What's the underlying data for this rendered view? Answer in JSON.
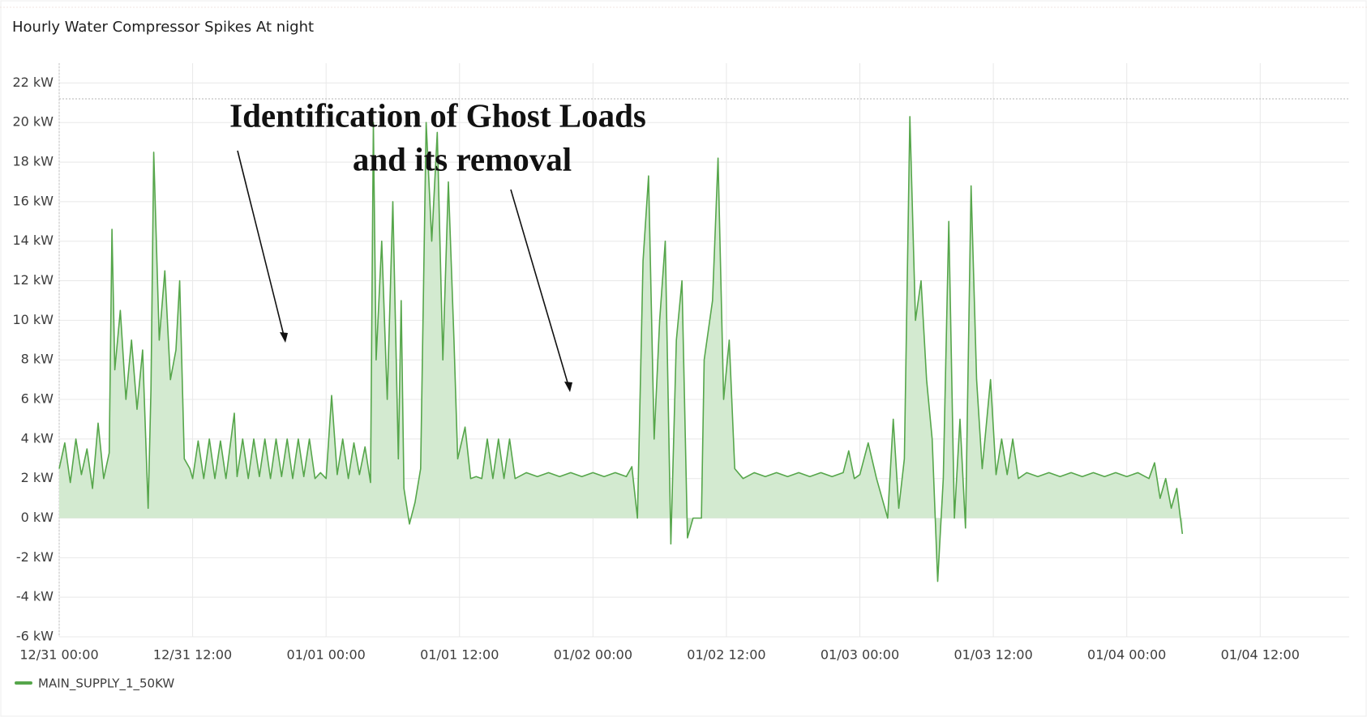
{
  "chart_data": {
    "type": "area-line",
    "title": "Hourly Water Compressor Spikes At night",
    "annotation": [
      "Identification of Ghost Loads",
      "and its removal"
    ],
    "xlim": [
      "12/31 00:00",
      "01/04 20:00"
    ],
    "xticks": [
      "12/31 00:00",
      "12/31 12:00",
      "01/01 00:00",
      "01/01 12:00",
      "01/02 00:00",
      "01/02 12:00",
      "01/03 00:00",
      "01/03 12:00",
      "01/04 00:00",
      "01/04 12:00"
    ],
    "ylim": [
      -6,
      23
    ],
    "yticks": [
      {
        "value": -6,
        "label": "-6 kW"
      },
      {
        "value": -4,
        "label": "-4 kW"
      },
      {
        "value": -2,
        "label": "-2 kW"
      },
      {
        "value": 0,
        "label": "0 kW"
      },
      {
        "value": 2,
        "label": "2 kW"
      },
      {
        "value": 4,
        "label": "4 kW"
      },
      {
        "value": 6,
        "label": "6 kW"
      },
      {
        "value": 8,
        "label": "8 kW"
      },
      {
        "value": 10,
        "label": "10 kW"
      },
      {
        "value": 12,
        "label": "12 kW"
      },
      {
        "value": 14,
        "label": "14 kW"
      },
      {
        "value": 16,
        "label": "16 kW"
      },
      {
        "value": 18,
        "label": "18 kW"
      },
      {
        "value": 20,
        "label": "20 kW"
      },
      {
        "value": 22,
        "label": "22 kW"
      }
    ],
    "grid": true,
    "threshold": 21.2,
    "legend": "bottom-left",
    "series": [
      {
        "name": "MAIN_SUPPLY_1_50KW",
        "color": "#56a64b",
        "fill": "#d3ead0",
        "x": [
          "12/31 00:00",
          "12/31 00:30",
          "12/31 01:00",
          "12/31 01:30",
          "12/31 02:00",
          "12/31 02:30",
          "12/31 03:00",
          "12/31 03:30",
          "12/31 04:00",
          "12/31 04:30",
          "12/31 04:45",
          "12/31 05:00",
          "12/31 05:30",
          "12/31 06:00",
          "12/31 06:30",
          "12/31 07:00",
          "12/31 07:30",
          "12/31 08:00",
          "12/31 08:15",
          "12/31 08:30",
          "12/31 09:00",
          "12/31 09:30",
          "12/31 10:00",
          "12/31 10:30",
          "12/31 10:50",
          "12/31 11:15",
          "12/31 11:45",
          "12/31 12:00",
          "12/31 12:30",
          "12/31 13:00",
          "12/31 13:30",
          "12/31 14:00",
          "12/31 14:30",
          "12/31 15:00",
          "12/31 15:45",
          "12/31 16:00",
          "12/31 16:30",
          "12/31 17:00",
          "12/31 17:30",
          "12/31 18:00",
          "12/31 18:30",
          "12/31 19:00",
          "12/31 19:30",
          "12/31 20:00",
          "12/31 20:30",
          "12/31 21:00",
          "12/31 21:30",
          "12/31 22:00",
          "12/31 22:30",
          "12/31 23:00",
          "12/31 23:30",
          "01/01 00:00",
          "01/01 00:30",
          "01/01 01:00",
          "01/01 01:30",
          "01/01 02:00",
          "01/01 02:30",
          "01/01 03:00",
          "01/01 03:30",
          "01/01 04:00",
          "01/01 04:15",
          "01/01 04:30",
          "01/01 05:00",
          "01/01 05:30",
          "01/01 06:00",
          "01/01 06:30",
          "01/01 06:45",
          "01/01 07:00",
          "01/01 07:30",
          "01/01 08:00",
          "01/01 08:30",
          "01/01 09:00",
          "01/01 09:30",
          "01/01 10:00",
          "01/01 10:30",
          "01/01 11:00",
          "01/01 11:30",
          "01/01 11:50",
          "01/01 12:30",
          "01/01 13:00",
          "01/01 13:30",
          "01/01 14:00",
          "01/01 14:30",
          "01/01 15:00",
          "01/01 15:30",
          "01/01 16:00",
          "01/01 16:30",
          "01/01 17:00",
          "01/01 18:00",
          "01/01 19:00",
          "01/01 20:00",
          "01/01 21:00",
          "01/01 22:00",
          "01/01 23:00",
          "01/02 00:00",
          "01/02 01:00",
          "01/02 02:00",
          "01/02 03:00",
          "01/02 03:30",
          "01/02 04:00",
          "01/02 04:30",
          "01/02 05:00",
          "01/02 05:30",
          "01/02 06:00",
          "01/02 06:30",
          "01/02 07:00",
          "01/02 07:30",
          "01/02 08:00",
          "01/02 08:30",
          "01/02 09:00",
          "01/02 09:45",
          "01/02 10:00",
          "01/02 10:45",
          "01/02 11:15",
          "01/02 11:45",
          "01/02 12:15",
          "01/02 12:45",
          "01/02 13:30",
          "01/02 14:30",
          "01/02 15:30",
          "01/02 16:30",
          "01/02 17:30",
          "01/02 18:30",
          "01/02 19:30",
          "01/02 20:30",
          "01/02 21:30",
          "01/02 22:30",
          "01/02 23:00",
          "01/02 23:30",
          "01/03 00:00",
          "01/03 00:45",
          "01/03 01:30",
          "01/03 02:30",
          "01/03 03:00",
          "01/03 03:30",
          "01/03 04:00",
          "01/03 04:30",
          "01/03 05:00",
          "01/03 05:30",
          "01/03 06:00",
          "01/03 06:30",
          "01/03 07:00",
          "01/03 07:30",
          "01/03 08:00",
          "01/03 08:30",
          "01/03 09:00",
          "01/03 09:30",
          "01/03 10:00",
          "01/03 10:30",
          "01/03 11:00",
          "01/03 11:45",
          "01/03 12:15",
          "01/03 12:45",
          "01/03 13:15",
          "01/03 13:45",
          "01/03 14:15",
          "01/03 15:00",
          "01/03 16:00",
          "01/03 17:00",
          "01/03 18:00",
          "01/03 19:00",
          "01/03 20:00",
          "01/03 21:00",
          "01/03 22:00",
          "01/03 23:00",
          "01/04 00:00",
          "01/04 01:00",
          "01/04 02:00",
          "01/04 02:30",
          "01/04 03:00",
          "01/04 03:30",
          "01/04 04:00",
          "01/04 04:30",
          "01/04 05:00"
        ],
        "values": [
          2.5,
          3.8,
          1.8,
          4.0,
          2.2,
          3.5,
          1.5,
          4.8,
          2.0,
          3.3,
          14.6,
          7.5,
          10.5,
          6.0,
          9.0,
          5.5,
          8.5,
          0.5,
          6.5,
          18.5,
          9.0,
          12.5,
          7.0,
          8.5,
          12.0,
          3.0,
          2.5,
          2.0,
          3.9,
          2.0,
          4.0,
          2.0,
          3.9,
          2.0,
          5.3,
          2.1,
          4.0,
          2.0,
          4.0,
          2.1,
          4.0,
          2.0,
          4.0,
          2.1,
          4.0,
          2.0,
          4.0,
          2.1,
          4.0,
          2.0,
          2.3,
          2.0,
          6.2,
          2.2,
          4.0,
          2.0,
          3.8,
          2.2,
          3.6,
          1.8,
          20.0,
          8.0,
          14.0,
          6.0,
          16.0,
          3.0,
          11.0,
          1.5,
          -0.3,
          0.8,
          2.5,
          20.0,
          14.0,
          19.5,
          8.0,
          17.0,
          9.0,
          3.0,
          4.6,
          2.0,
          2.1,
          2.0,
          4.0,
          2.0,
          4.0,
          2.0,
          4.0,
          2.0,
          2.3,
          2.1,
          2.3,
          2.1,
          2.3,
          2.1,
          2.3,
          2.1,
          2.3,
          2.1,
          2.6,
          0.0,
          13.0,
          17.3,
          4.0,
          10.0,
          14.0,
          -1.3,
          9.0,
          12.0,
          -1.0,
          0.0,
          0.0,
          8.0,
          11.0,
          18.2,
          6.0,
          9.0,
          2.5,
          2.0,
          2.3,
          2.1,
          2.3,
          2.1,
          2.3,
          2.1,
          2.3,
          2.1,
          2.3,
          3.4,
          2.0,
          2.2,
          3.8,
          2.0,
          0.0,
          5.0,
          0.5,
          3.0,
          20.3,
          10.0,
          12.0,
          7.0,
          4.0,
          -3.2,
          2.0,
          15.0,
          0.0,
          5.0,
          -0.5,
          16.8,
          7.0,
          2.5,
          7.0,
          2.2,
          4.0,
          2.2,
          4.0,
          2.0,
          2.3,
          2.1,
          2.3,
          2.1,
          2.3,
          2.1,
          2.3,
          2.1,
          2.3,
          2.1,
          2.3,
          2.0,
          2.8,
          1.0,
          2.0,
          0.5,
          1.5,
          -0.8
        ]
      }
    ]
  }
}
